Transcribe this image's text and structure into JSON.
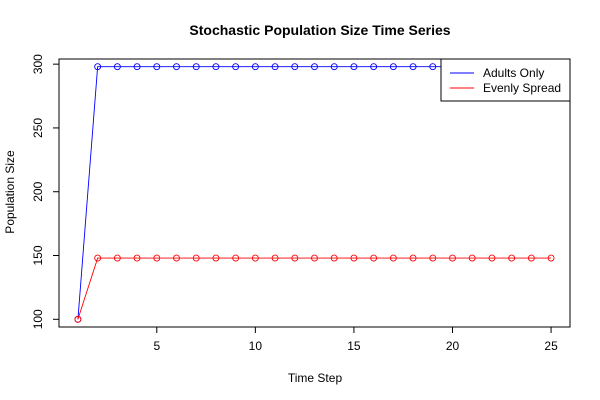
{
  "chart_data": {
    "type": "line",
    "title": "Stochastic Population Size Time Series",
    "xlabel": "Time Step",
    "ylabel": "Population Size",
    "xlim": [
      0.04,
      25.96
    ],
    "ylim": [
      93.96,
      304.04
    ],
    "x_ticks": [
      5,
      10,
      15,
      20,
      25
    ],
    "y_ticks": [
      100,
      150,
      200,
      250,
      300
    ],
    "grid": false,
    "legend_position": "top-right",
    "x": [
      1,
      2,
      3,
      4,
      5,
      6,
      7,
      8,
      9,
      10,
      11,
      12,
      13,
      14,
      15,
      16,
      17,
      18,
      19,
      20,
      21,
      22,
      23,
      24,
      25
    ],
    "series": [
      {
        "name": "Adults Only",
        "color": "#0000ff",
        "marker": "open-circle",
        "values": [
          100,
          298,
          298,
          298,
          298,
          298,
          298,
          298,
          298,
          298,
          298,
          298,
          298,
          298,
          298,
          298,
          298,
          298,
          298,
          298,
          298,
          298,
          298,
          298,
          298
        ]
      },
      {
        "name": "Evenly Spread",
        "color": "#ff0000",
        "marker": "open-circle",
        "values": [
          100,
          148,
          148,
          148,
          148,
          148,
          148,
          148,
          148,
          148,
          148,
          148,
          148,
          148,
          148,
          148,
          148,
          148,
          148,
          148,
          148,
          148,
          148,
          148,
          148
        ]
      }
    ]
  }
}
